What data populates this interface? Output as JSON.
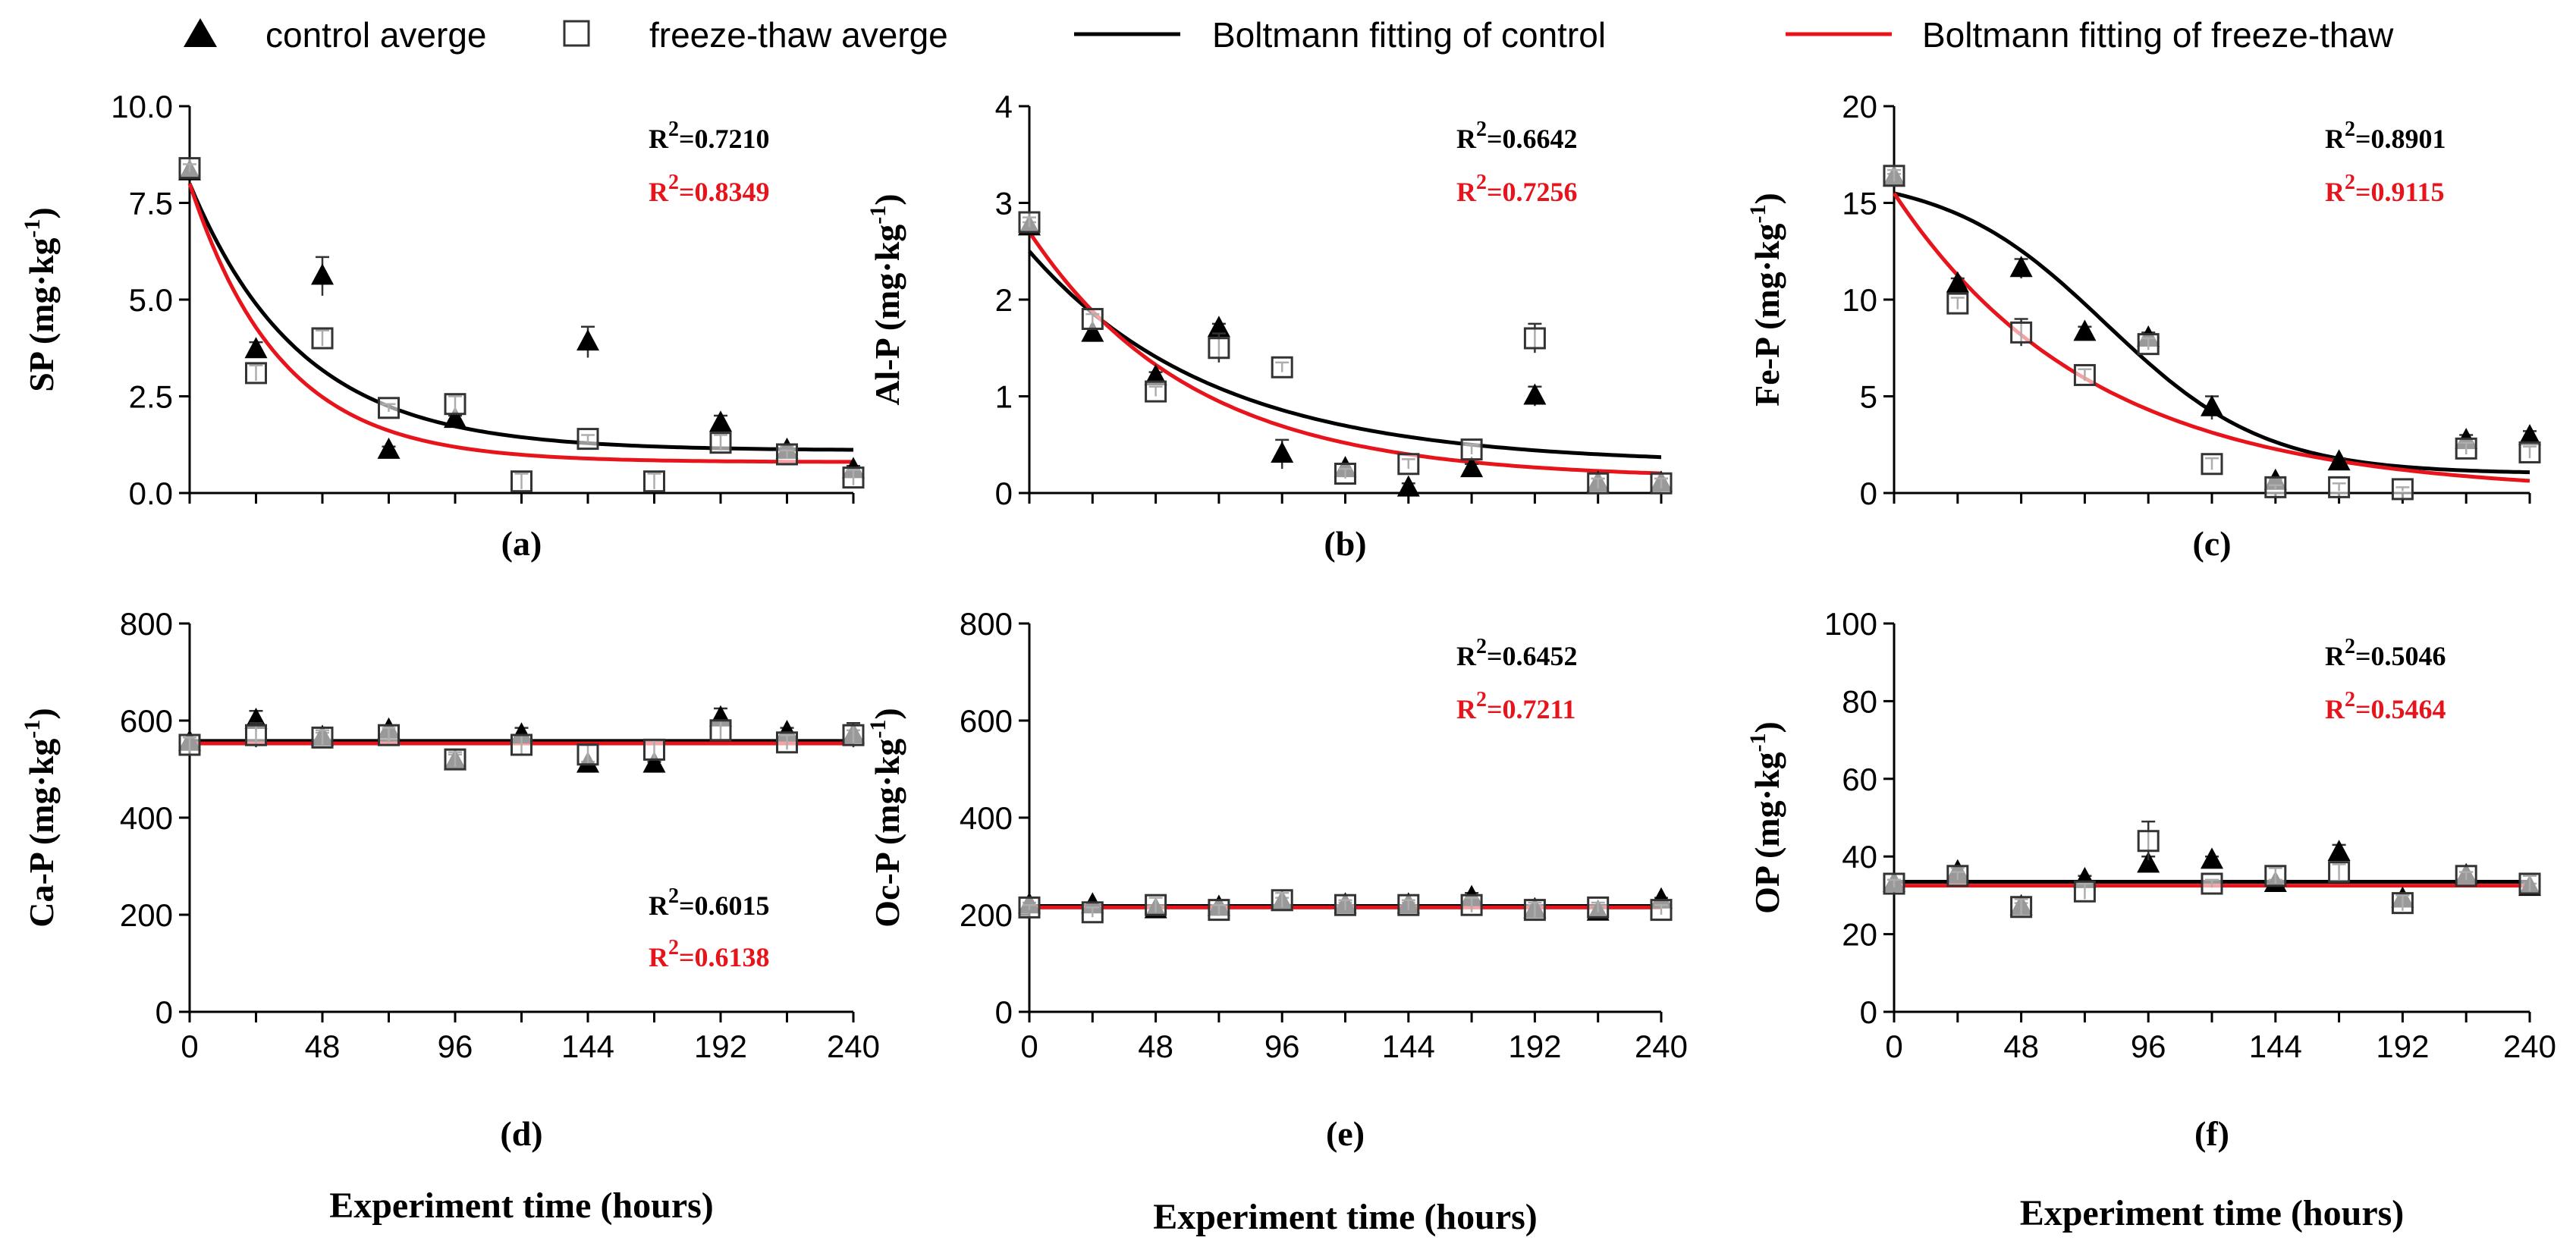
{
  "legend": {
    "control_avg": "control averge",
    "freeze_avg": "freeze-thaw averge",
    "fit_control": "Boltmann fitting of control",
    "fit_freeze": "Boltmann fitting of freeze-thaw"
  },
  "colors": {
    "control": "#000000",
    "freeze": "#e8141c"
  },
  "chart_data": [
    {
      "type": "scatter",
      "panel": "(a)",
      "ylabel": "SP (mg·kg",
      "yunit_sup": "-1",
      "xlabel": "",
      "xlim": [
        0,
        240
      ],
      "ylim": [
        0,
        10
      ],
      "yticks": [
        "0.0",
        "2.5",
        "5.0",
        "7.5",
        "10.0"
      ],
      "ytick_values": [
        0,
        2.5,
        5,
        7.5,
        10
      ],
      "xticks": [],
      "xtick_values": [],
      "r2_control_label": "R",
      "r2_control_value": "=0.7210",
      "r2_freeze_label": "R",
      "r2_freeze_value": "=0.8349",
      "r2_sup": "2",
      "r2_pos": "top-right",
      "x": [
        0,
        24,
        48,
        72,
        96,
        120,
        144,
        168,
        192,
        216,
        240
      ],
      "series": [
        {
          "name": "control averge",
          "values": [
            8.3,
            3.7,
            5.6,
            1.1,
            1.9,
            null,
            3.9,
            null,
            1.8,
            1.1,
            0.6
          ],
          "err": [
            0,
            0.2,
            0.5,
            0.1,
            0.1,
            0,
            0.4,
            0,
            0.2,
            0.1,
            0.1
          ]
        },
        {
          "name": "freeze-thaw averge",
          "values": [
            8.4,
            3.1,
            4.0,
            2.2,
            2.3,
            0.3,
            1.4,
            0.3,
            1.3,
            1.0,
            0.4
          ],
          "err": [
            0.1,
            0.2,
            0.2,
            0.1,
            0.2,
            0.2,
            0.1,
            0.2,
            0.2,
            0.1,
            0.2
          ]
        }
      ],
      "fit_control": {
        "a1": 8.0,
        "a2": 1.1,
        "x0": 0,
        "dx": 40,
        "type": "exp"
      },
      "fit_freeze": {
        "a1": 8.0,
        "a2": 0.8,
        "x0": 0,
        "dx": 33,
        "type": "exp"
      }
    },
    {
      "type": "scatter",
      "panel": "(b)",
      "ylabel": "Al-P (mg·kg",
      "yunit_sup": "-1",
      "xlabel": "",
      "xlim": [
        0,
        240
      ],
      "ylim": [
        0,
        4
      ],
      "yticks": [
        "0",
        "1",
        "2",
        "3",
        "4"
      ],
      "ytick_values": [
        0,
        1,
        2,
        3,
        4
      ],
      "xticks": [],
      "xtick_values": [],
      "r2_control_label": "R",
      "r2_control_value": "=0.6642",
      "r2_freeze_label": "R",
      "r2_freeze_value": "=0.7256",
      "r2_sup": "2",
      "r2_pos": "top-right",
      "x": [
        0,
        24,
        48,
        72,
        96,
        120,
        144,
        168,
        192,
        216,
        240
      ],
      "series": [
        {
          "name": "control averge",
          "values": [
            2.75,
            1.65,
            1.2,
            1.7,
            0.4,
            0.25,
            0.05,
            0.25,
            1.0,
            0.1,
            0.1
          ],
          "err": [
            0.05,
            0.05,
            0.05,
            0.05,
            0.15,
            0.05,
            0.05,
            0.05,
            0.1,
            0.05,
            0.05
          ]
        },
        {
          "name": "freeze-thaw averge",
          "values": [
            2.8,
            1.8,
            1.05,
            1.5,
            1.3,
            0.2,
            0.3,
            0.45,
            1.6,
            0.1,
            0.1
          ],
          "err": [
            0.05,
            0.05,
            0.05,
            0.15,
            0.05,
            0.05,
            0.05,
            0.05,
            0.15,
            0.05,
            0.05
          ]
        }
      ],
      "fit_control": {
        "a1": 2.5,
        "a2": 0.3,
        "x0": 0,
        "dx": 70,
        "type": "exp"
      },
      "fit_freeze": {
        "a1": 2.7,
        "a2": 0.15,
        "x0": 0,
        "dx": 62,
        "type": "exp"
      }
    },
    {
      "type": "scatter",
      "panel": "(c)",
      "ylabel": "Fe-P (mg·kg",
      "yunit_sup": "-1",
      "xlabel": "",
      "xlim": [
        0,
        240
      ],
      "ylim": [
        0,
        20
      ],
      "yticks": [
        "0",
        "5",
        "10",
        "15",
        "20"
      ],
      "ytick_values": [
        0,
        5,
        10,
        15,
        20
      ],
      "xticks": [],
      "xtick_values": [],
      "r2_control_label": "R",
      "r2_control_value": "=0.8901",
      "r2_freeze_label": "R",
      "r2_freeze_value": "=0.9115",
      "r2_sup": "2",
      "r2_pos": "top-right",
      "x": [
        0,
        24,
        48,
        72,
        96,
        120,
        144,
        168,
        192,
        216,
        240
      ],
      "series": [
        {
          "name": "control averge",
          "values": [
            16.3,
            10.8,
            11.6,
            8.3,
            8.0,
            4.4,
            0.6,
            1.6,
            null,
            2.7,
            2.9
          ],
          "err": [
            0.2,
            0.3,
            0.5,
            0.3,
            0.3,
            0.6,
            0.1,
            0.2,
            0,
            0.3,
            0.3
          ]
        },
        {
          "name": "freeze-thaw averge",
          "values": [
            16.4,
            9.8,
            8.3,
            6.1,
            7.7,
            1.5,
            0.3,
            0.3,
            0.2,
            2.3,
            2.1
          ],
          "err": [
            0.3,
            0.3,
            0.7,
            0.3,
            0.3,
            0.3,
            0.1,
            0.2,
            0.1,
            0.3,
            0.3
          ]
        }
      ],
      "fit_control": {
        "a1": 16.5,
        "a2": 1.0,
        "x0": 80,
        "dx": 30,
        "type": "boltzmann"
      },
      "fit_freeze": {
        "a1": 15.5,
        "a2": 0.0,
        "x0": 0,
        "dx": 75,
        "type": "exp"
      }
    },
    {
      "type": "scatter",
      "panel": "(d)",
      "ylabel": "Ca-P (mg·kg",
      "yunit_sup": "-1",
      "xlabel": "Experiment time (hours)",
      "xlim": [
        0,
        240
      ],
      "ylim": [
        0,
        800
      ],
      "yticks": [
        "0",
        "200",
        "400",
        "600",
        "800"
      ],
      "ytick_values": [
        0,
        200,
        400,
        600,
        800
      ],
      "xticks": [
        "0",
        "48",
        "96",
        "144",
        "192",
        "240"
      ],
      "xtick_values": [
        0,
        48,
        96,
        144,
        192,
        240
      ],
      "r2_control_label": "R",
      "r2_control_value": "=0.6015",
      "r2_freeze_label": "R",
      "r2_freeze_value": "=0.6138",
      "r2_sup": "2",
      "r2_pos": "bottom-right",
      "x": [
        0,
        24,
        48,
        72,
        96,
        120,
        144,
        168,
        192,
        216,
        240
      ],
      "series": [
        {
          "name": "control averge",
          "values": [
            555,
            600,
            565,
            580,
            515,
            570,
            510,
            510,
            605,
            575,
            570
          ],
          "err": [
            10,
            20,
            10,
            10,
            15,
            15,
            5,
            5,
            20,
            10,
            10
          ]
        },
        {
          "name": "freeze-thaw averge",
          "values": [
            550,
            570,
            565,
            570,
            520,
            550,
            530,
            540,
            580,
            555,
            570
          ],
          "err": [
            15,
            25,
            15,
            15,
            15,
            20,
            20,
            20,
            20,
            15,
            25
          ]
        }
      ],
      "fit_control": {
        "const": 558,
        "type": "const"
      },
      "fit_freeze": {
        "const": 553,
        "type": "const"
      }
    },
    {
      "type": "scatter",
      "panel": "(e)",
      "ylabel": "Oc-P (mg·kg",
      "yunit_sup": "-1",
      "xlabel": "Experiment time (hours)",
      "xlim": [
        0,
        240
      ],
      "ylim": [
        0,
        800
      ],
      "yticks": [
        "0",
        "200",
        "400",
        "600",
        "800"
      ],
      "ytick_values": [
        0,
        200,
        400,
        600,
        800
      ],
      "xticks": [
        "0",
        "48",
        "96",
        "144",
        "192",
        "240"
      ],
      "xtick_values": [
        0,
        48,
        96,
        144,
        192,
        240
      ],
      "r2_control_label": "R",
      "r2_control_value": "=0.6452",
      "r2_freeze_label": "R",
      "r2_freeze_value": "=0.7211",
      "r2_sup": "2",
      "r2_pos": "top-right",
      "x": [
        0,
        24,
        48,
        72,
        96,
        120,
        144,
        168,
        192,
        216,
        240
      ],
      "series": [
        {
          "name": "control averge",
          "values": [
            220,
            220,
            210,
            215,
            225,
            220,
            220,
            235,
            210,
            205,
            230
          ],
          "err": [
            5,
            5,
            5,
            5,
            10,
            5,
            5,
            10,
            10,
            10,
            5
          ]
        },
        {
          "name": "freeze-thaw averge",
          "values": [
            215,
            205,
            220,
            210,
            230,
            220,
            220,
            220,
            210,
            215,
            210
          ],
          "err": [
            5,
            10,
            15,
            10,
            15,
            10,
            10,
            15,
            15,
            10,
            10
          ]
        }
      ],
      "fit_control": {
        "const": 218,
        "type": "const"
      },
      "fit_freeze": {
        "const": 215,
        "type": "const"
      }
    },
    {
      "type": "scatter",
      "panel": "(f)",
      "ylabel": "OP (mg·kg",
      "yunit_sup": "-1",
      "xlabel": "Experiment time (hours)",
      "xlim": [
        0,
        240
      ],
      "ylim": [
        0,
        100
      ],
      "yticks": [
        "0",
        "20",
        "40",
        "60",
        "80",
        "100"
      ],
      "ytick_values": [
        0,
        20,
        40,
        60,
        80,
        100
      ],
      "xticks": [
        "0",
        "48",
        "96",
        "144",
        "192",
        "240"
      ],
      "xtick_values": [
        0,
        48,
        96,
        144,
        192,
        240
      ],
      "r2_control_label": "R",
      "r2_control_value": "=0.5046",
      "r2_freeze_label": "R",
      "r2_freeze_value": "=0.5464",
      "r2_sup": "2",
      "r2_pos": "top-right",
      "x": [
        0,
        24,
        48,
        72,
        96,
        120,
        144,
        168,
        192,
        216,
        240
      ],
      "series": [
        {
          "name": "control averge",
          "values": [
            33,
            36,
            27,
            34,
            38,
            39,
            33,
            41,
            29,
            35,
            32
          ],
          "err": [
            1,
            1,
            1,
            1,
            2,
            1,
            1,
            2,
            1,
            1,
            1
          ]
        },
        {
          "name": "freeze-thaw averge",
          "values": [
            33,
            35,
            27,
            31,
            44,
            33,
            35,
            36,
            28,
            35,
            33
          ],
          "err": [
            1,
            1,
            2,
            2,
            5,
            1,
            2,
            2,
            2,
            1,
            2
          ]
        }
      ],
      "fit_control": {
        "const": 33.5,
        "type": "const"
      },
      "fit_freeze": {
        "const": 32.5,
        "type": "const"
      }
    }
  ]
}
